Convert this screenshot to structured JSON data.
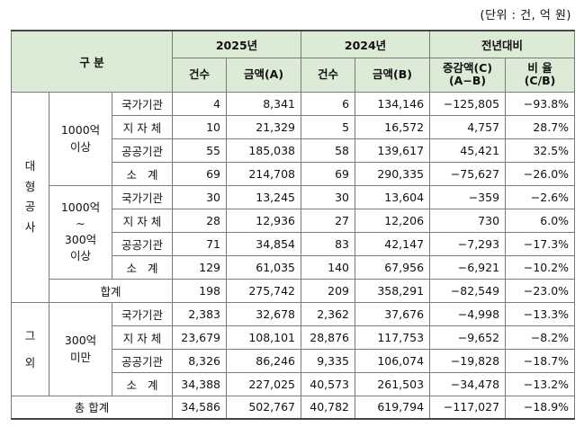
{
  "unit_note": "(단위 : 건, 억 원)",
  "header": {
    "category": "구 분",
    "year_2025": "2025년",
    "year_2024": "2024년",
    "yoy": "전년대비",
    "count": "건수",
    "amount_a": "금액(A)",
    "amount_b": "금액(B)",
    "change_top": "증감액(C)",
    "change_bottom": "(A−B)",
    "ratio_top": "비 율",
    "ratio_bottom": "(C/B)"
  },
  "groups": {
    "large": "대\n형\n공\n사",
    "other": "그\n\n외"
  },
  "subgroups": {
    "over1000": "1000억\n이상",
    "range": "1000억\n∼\n300억\n이상",
    "under300": "300억\n미만"
  },
  "rows": [
    {
      "cat": "국가기관",
      "c25": "4",
      "a25": "8,341",
      "c24": "6",
      "a24": "134,146",
      "diff": "−125,805",
      "ratio": "−93.8%"
    },
    {
      "cat": "지 자 체",
      "c25": "10",
      "a25": "21,329",
      "c24": "5",
      "a24": "16,572",
      "diff": "4,757",
      "ratio": "28.7%"
    },
    {
      "cat": "공공기관",
      "c25": "55",
      "a25": "185,038",
      "c24": "58",
      "a24": "139,617",
      "diff": "45,421",
      "ratio": "32.5%"
    },
    {
      "cat": "소   계",
      "c25": "69",
      "a25": "214,708",
      "c24": "69",
      "a24": "290,335",
      "diff": "−75,627",
      "ratio": "−26.0%"
    },
    {
      "cat": "국가기관",
      "c25": "30",
      "a25": "13,245",
      "c24": "30",
      "a24": "13,604",
      "diff": "−359",
      "ratio": "−2.6%"
    },
    {
      "cat": "지 자 체",
      "c25": "28",
      "a25": "12,936",
      "c24": "27",
      "a24": "12,206",
      "diff": "730",
      "ratio": "6.0%"
    },
    {
      "cat": "공공기관",
      "c25": "71",
      "a25": "34,854",
      "c24": "83",
      "a24": "42,147",
      "diff": "−7,293",
      "ratio": "−17.3%"
    },
    {
      "cat": "소   계",
      "c25": "129",
      "a25": "61,035",
      "c24": "140",
      "a24": "67,956",
      "diff": "−6,921",
      "ratio": "−10.2%"
    },
    {
      "cat": "합계",
      "c25": "198",
      "a25": "275,742",
      "c24": "209",
      "a24": "358,291",
      "diff": "−82,549",
      "ratio": "−23.0%"
    },
    {
      "cat": "국가기관",
      "c25": "2,383",
      "a25": "32,678",
      "c24": "2,362",
      "a24": "37,676",
      "diff": "−4,998",
      "ratio": "−13.3%"
    },
    {
      "cat": "지 자 체",
      "c25": "23,679",
      "a25": "108,101",
      "c24": "28,876",
      "a24": "117,753",
      "diff": "−9,652",
      "ratio": "−8.2%"
    },
    {
      "cat": "공공기관",
      "c25": "8,326",
      "a25": "86,246",
      "c24": "9,335",
      "a24": "106,074",
      "diff": "−19,828",
      "ratio": "−18.7%"
    },
    {
      "cat": "소   계",
      "c25": "34,388",
      "a25": "227,025",
      "c24": "40,573",
      "a24": "261,503",
      "diff": "−34,478",
      "ratio": "−13.2%"
    },
    {
      "cat": "총 합계",
      "c25": "34,586",
      "a25": "502,767",
      "c24": "40,782",
      "a24": "619,794",
      "diff": "−117,027",
      "ratio": "−18.9%"
    }
  ]
}
